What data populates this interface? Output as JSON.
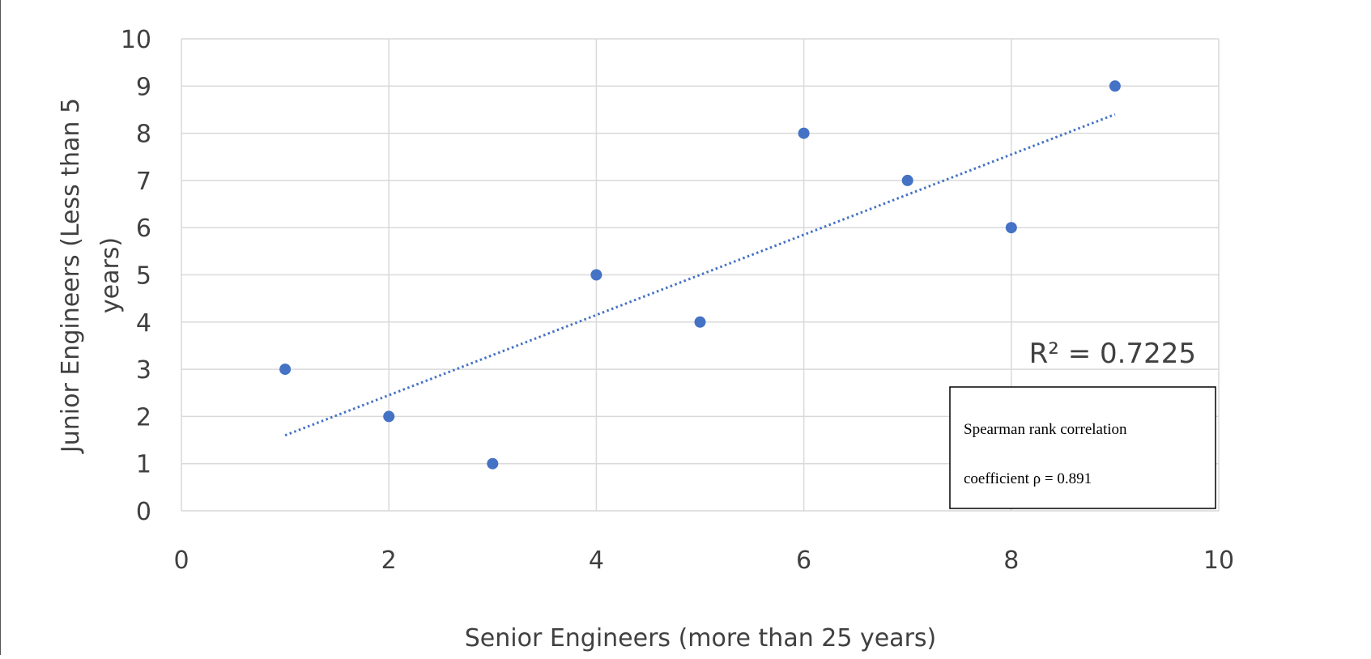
{
  "chart_data": {
    "type": "scatter",
    "xlabel": "Senior Engineers (more than 25 years)",
    "ylabel_lines": [
      "Junior Engineers (Less than 5",
      "years)"
    ],
    "xlim": [
      0,
      10
    ],
    "ylim": [
      0,
      10
    ],
    "x_ticks": [
      0,
      2,
      4,
      6,
      8,
      10
    ],
    "y_ticks": [
      0,
      1,
      2,
      3,
      4,
      5,
      6,
      7,
      8,
      9,
      10
    ],
    "grid": true,
    "points": [
      {
        "x": 1,
        "y": 3
      },
      {
        "x": 2,
        "y": 2
      },
      {
        "x": 3,
        "y": 1
      },
      {
        "x": 4,
        "y": 5
      },
      {
        "x": 5,
        "y": 4
      },
      {
        "x": 6,
        "y": 8
      },
      {
        "x": 7,
        "y": 7
      },
      {
        "x": 8,
        "y": 6
      },
      {
        "x": 9,
        "y": 9
      }
    ],
    "trendline": {
      "type": "linear",
      "dotted": true,
      "from": {
        "x": 1,
        "y": 1.6
      },
      "to": {
        "x": 9,
        "y": 8.4
      }
    },
    "r_squared_label": "R² = 0.7225",
    "annotation_lines": [
      "Spearman rank correlation",
      "coefficient ρ = 0.891"
    ],
    "colors": {
      "marker": "#4472c4",
      "grid": "#d9d9d9",
      "text": "#404040"
    }
  }
}
